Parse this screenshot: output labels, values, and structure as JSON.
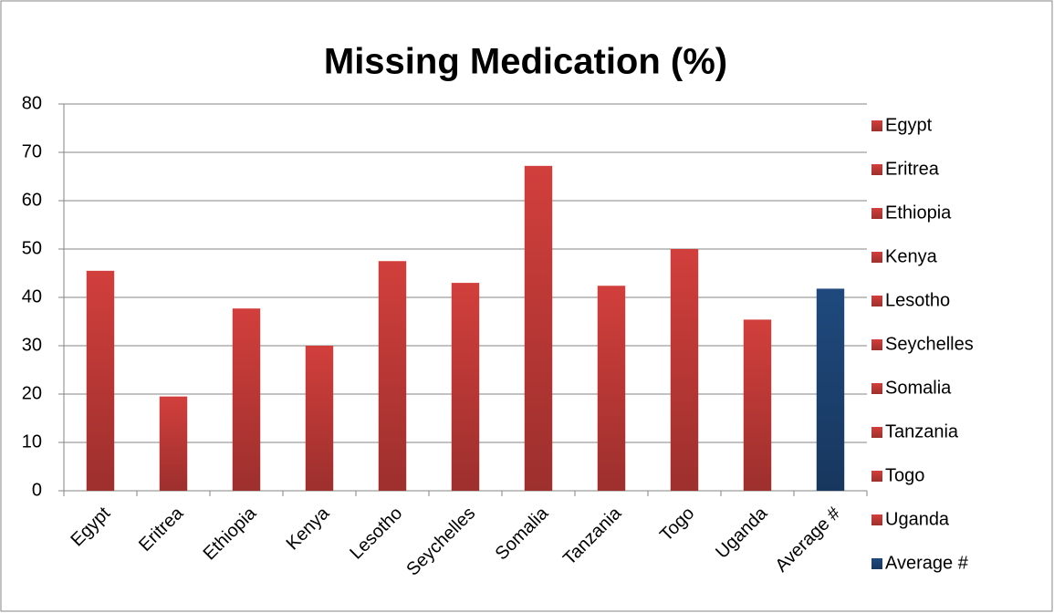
{
  "chart_data": {
    "type": "bar",
    "title": "Missing Medication (%)",
    "categories": [
      "Egypt",
      "Eritrea",
      "Ethiopia",
      "Kenya",
      "Lesotho",
      "Seychelles",
      "Somalia",
      "Tanzania",
      "Togo",
      "Uganda",
      "Average #"
    ],
    "values": [
      45.5,
      19.5,
      37.7,
      30,
      47.5,
      43,
      67.2,
      42.4,
      50,
      35.4,
      41.8
    ],
    "colors": [
      "#d13f3c",
      "#d13f3c",
      "#d13f3c",
      "#d13f3c",
      "#d13f3c",
      "#d13f3c",
      "#d13f3c",
      "#d13f3c",
      "#d13f3c",
      "#d13f3c",
      "#1f497d"
    ],
    "ylim": [
      0,
      80
    ],
    "yticks": [
      0,
      10,
      20,
      30,
      40,
      50,
      60,
      70,
      80
    ],
    "grid": true,
    "legend": "right"
  }
}
